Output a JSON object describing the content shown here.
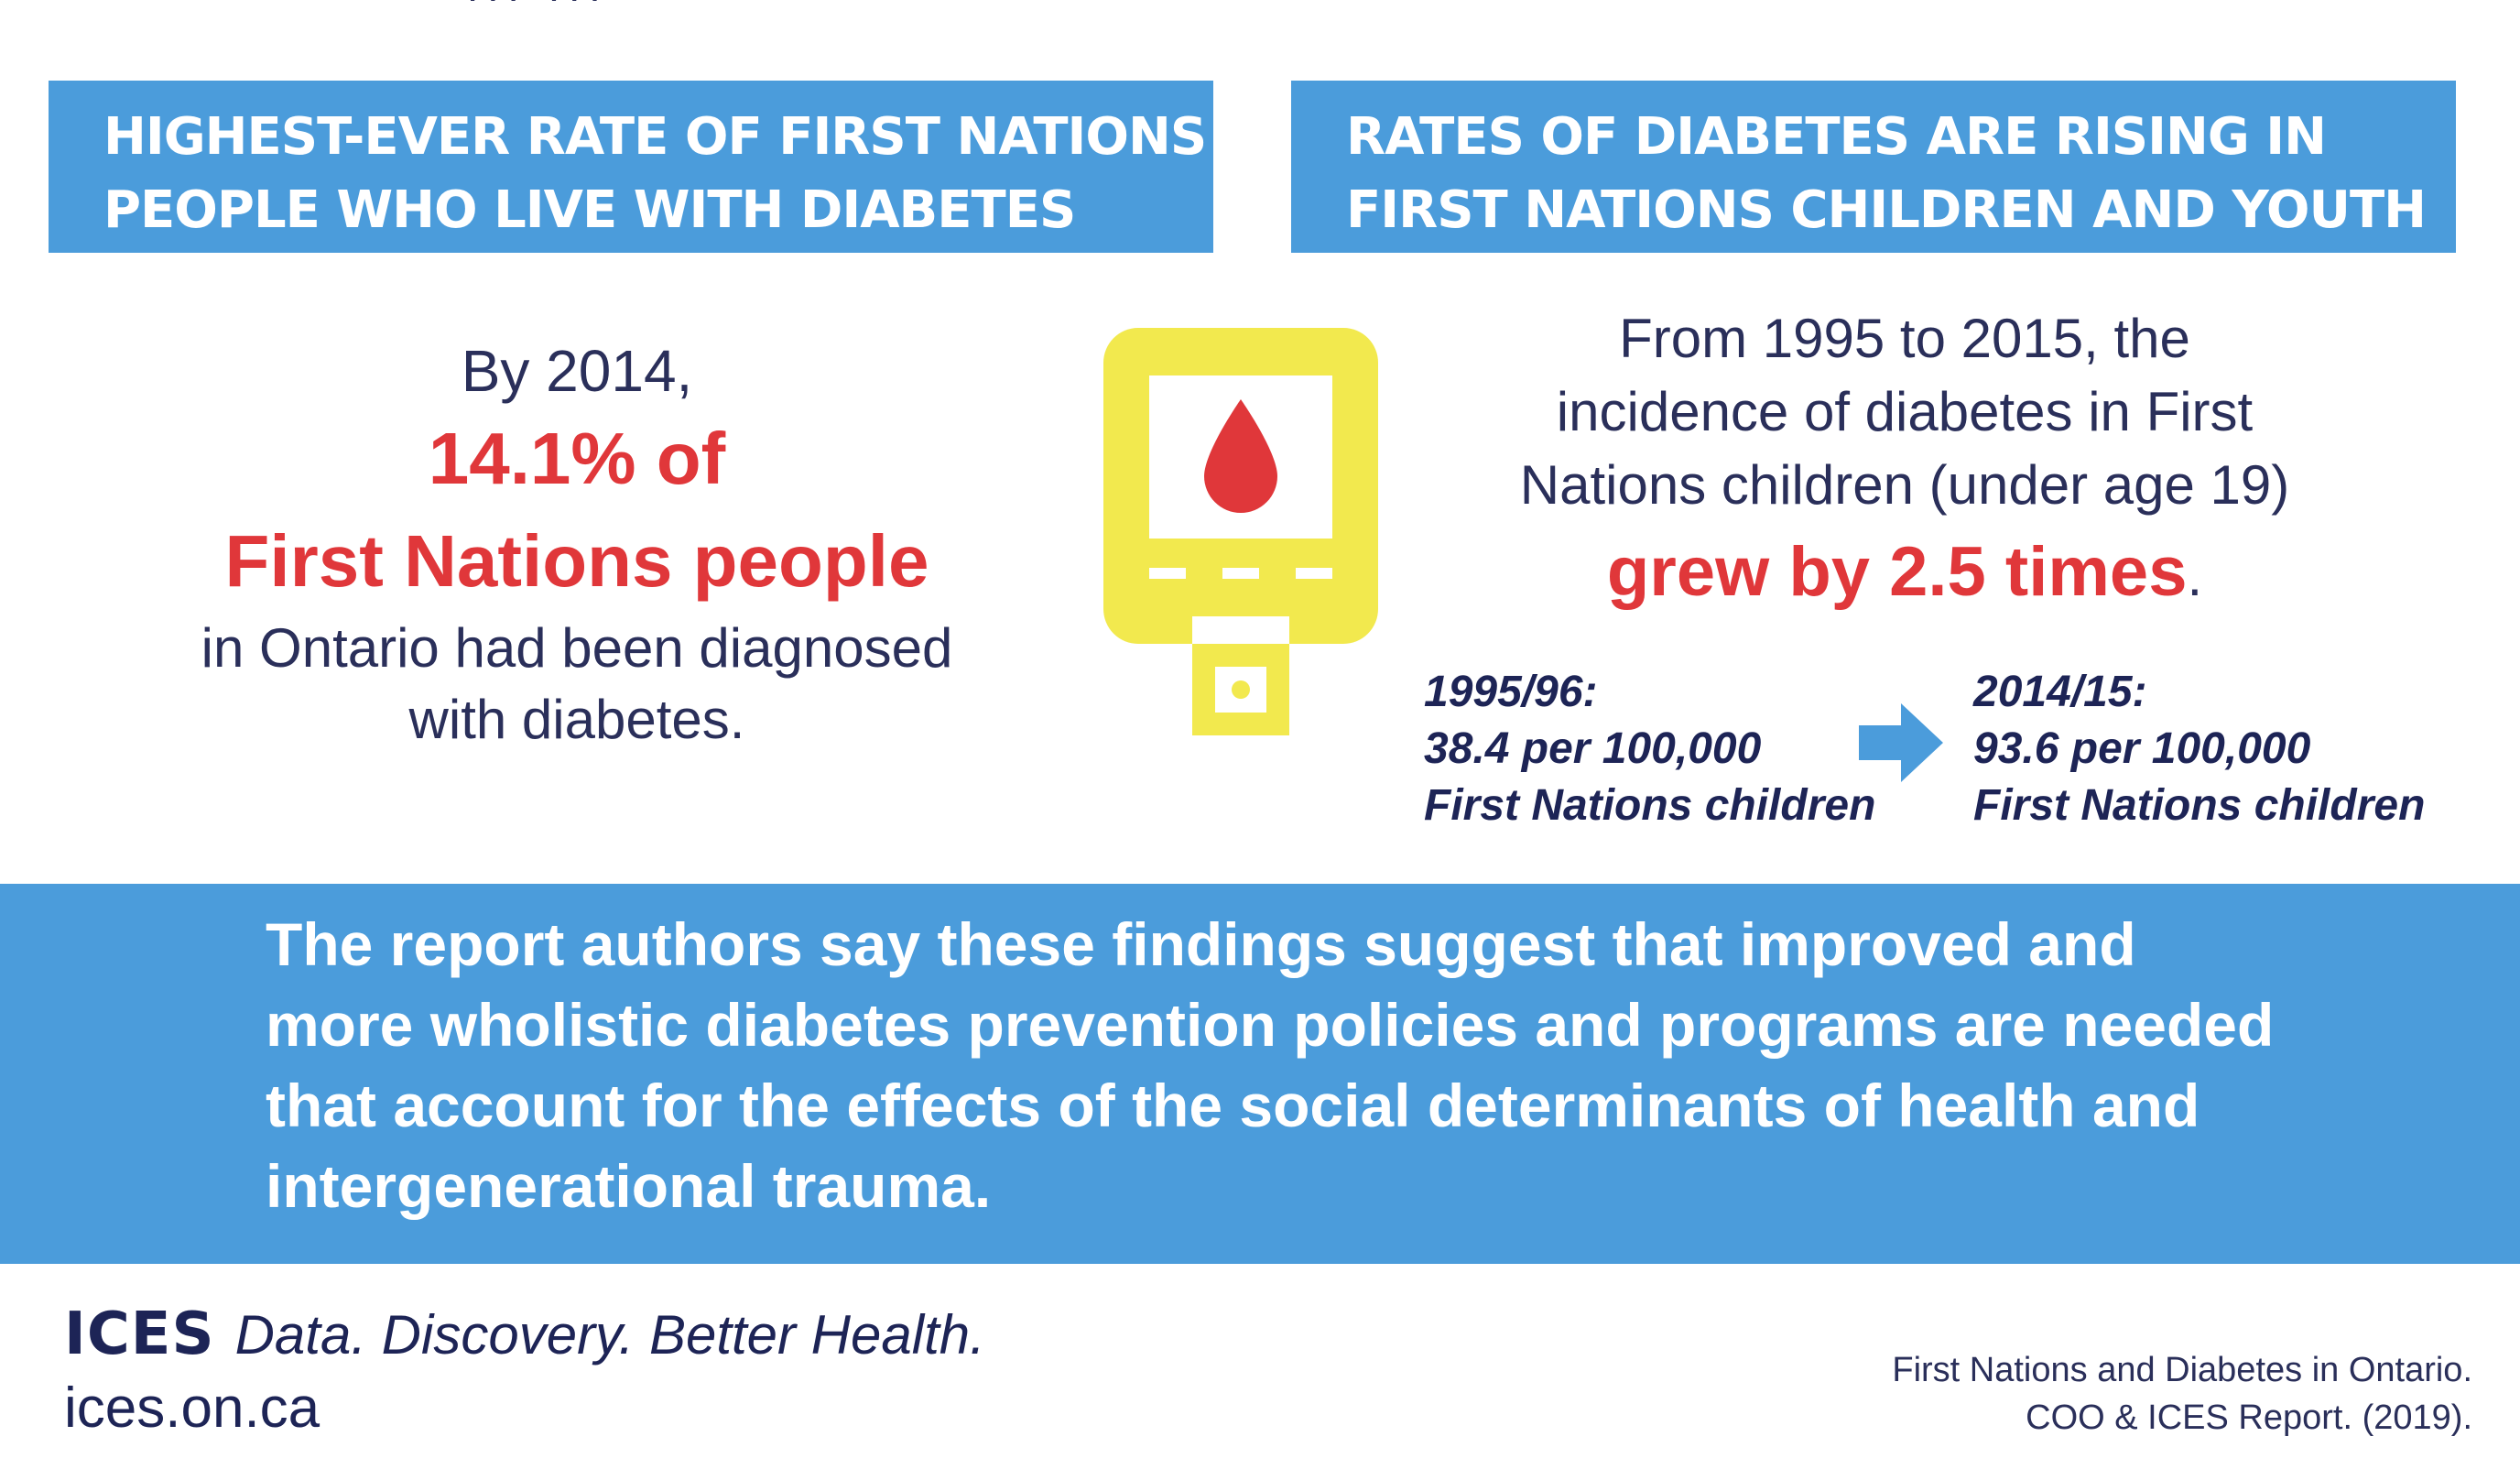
{
  "top_fragment": "... ...",
  "left_header": {
    "line1": "HIGHEST-EVER RATE OF FIRST NATIONS",
    "line2": "PEOPLE WHO LIVE WITH DIABETES"
  },
  "right_header": {
    "line1": "RATES OF DIABETES ARE RISING IN",
    "line2": "FIRST NATIONS CHILDREN AND YOUTH"
  },
  "left_stat": {
    "intro": "By 2014,",
    "highlight_line1": "14.1% of",
    "highlight_line2": "First Nations people",
    "rest_line1": "in Ontario had been diagnosed",
    "rest_line2": "with diabetes."
  },
  "meter_icon": "blood-glucose-meter-icon",
  "right_stat": {
    "line1": "From 1995 to 2015, the",
    "line2": "incidence of diabetes in First",
    "line3": "Nations children (under age 19)",
    "highlight": "grew by 2.5 times",
    "period": "."
  },
  "comparison": {
    "before": {
      "period": "1995/96:",
      "rate": "38.4 per 100,000",
      "group": "First Nations children"
    },
    "after": {
      "period": "2014/15:",
      "rate": "93.6 per 100,000",
      "group": "First Nations children"
    },
    "arrow_icon": "right-arrow-icon"
  },
  "banner": {
    "line1": "The report authors say these findings suggest that improved and",
    "line2": "more wholistic diabetes prevention policies and programs are needed",
    "line3": "that account for the effects of the social determinants of health and",
    "line4": "intergenerational trauma."
  },
  "footer": {
    "logo": "ICES",
    "tagline": "Data. Discovery. Better Health.",
    "url": "ices.on.ca",
    "citation_line1": "First Nations and Diabetes in Ontario.",
    "citation_line2": "COO & ICES Report. (2019)."
  },
  "colors": {
    "header_blue": "#4b9cdb",
    "accent_red": "#e0373a",
    "meter_yellow": "#f2e94e",
    "navy_text": "#1d2456",
    "text_dark": "#2a2f5a"
  }
}
